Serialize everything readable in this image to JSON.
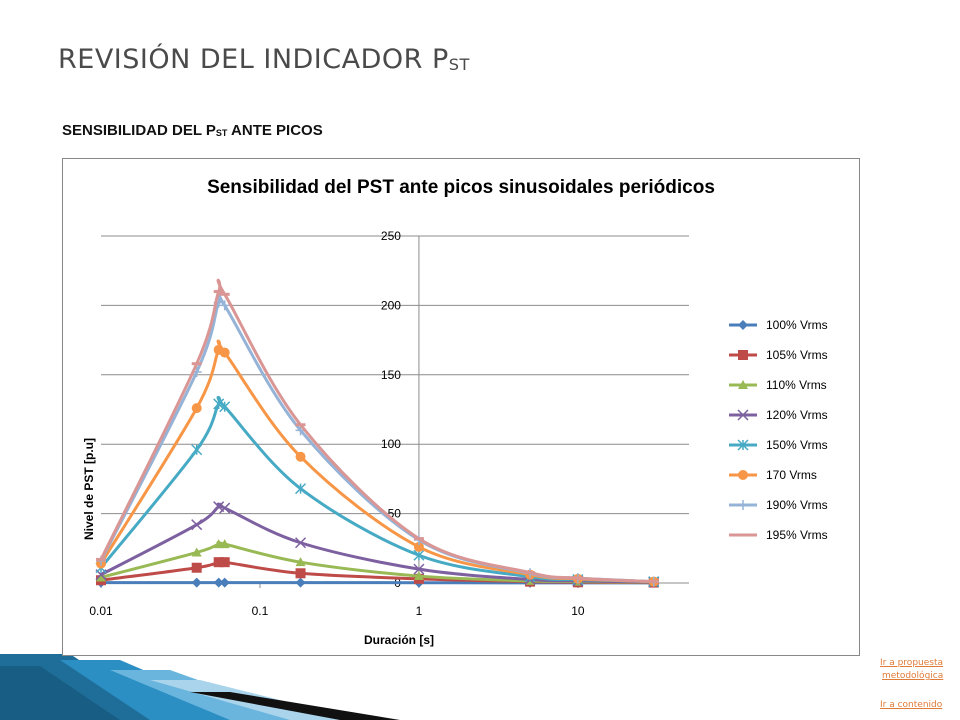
{
  "slide": {
    "title_main": "REVISIÓN DEL INDICADOR P",
    "title_sub": "ST",
    "section_main": "SENSIBILIDAD  DEL P",
    "section_sub": "ST",
    "section_rest": " ANTE PICOS"
  },
  "links": {
    "propuesta_line1": "Ir a propuesta",
    "propuesta_line2": "metodológica",
    "contenido": "Ir a contenido"
  },
  "colors": {
    "accent_stripe": "#2c8fc4",
    "link": "#e07b39"
  },
  "chart_data": {
    "type": "line",
    "title": "Sensibilidad del PST ante picos sinusoidales periódicos",
    "xlabel": "Duración  [s]",
    "ylabel": "Nivel de PST [p.u]",
    "x_scale": "log",
    "xlim": [
      0.01,
      50
    ],
    "ylim": [
      0,
      250
    ],
    "x_ticks": [
      0.01,
      0.1,
      1,
      10
    ],
    "x_tick_labels": [
      "0.01",
      "0.1",
      "1",
      "10"
    ],
    "y_ticks": [
      0,
      50,
      100,
      150,
      200,
      250
    ],
    "y_tick_labels": [
      "0",
      "50",
      "100",
      "150",
      "200",
      "250"
    ],
    "grid": "horizontal",
    "legend_position": "right",
    "x": [
      0.01,
      0.04,
      0.055,
      0.06,
      0.18,
      1,
      5,
      10,
      30
    ],
    "series": [
      {
        "name": "100% Vrms",
        "color": "#4a7ebb",
        "marker": "diamond",
        "values": [
          0.3,
          0.3,
          0.3,
          0.3,
          0.3,
          0.2,
          0.1,
          0.1,
          0.1
        ]
      },
      {
        "name": "105% Vrms",
        "color": "#be4b48",
        "marker": "square",
        "values": [
          2,
          11,
          15,
          15,
          7,
          3,
          1,
          0.5,
          0.3
        ]
      },
      {
        "name": "110% Vrms",
        "color": "#98b954",
        "marker": "triangle",
        "values": [
          4,
          22,
          28,
          28,
          15,
          5,
          1.5,
          1,
          0.5
        ]
      },
      {
        "name": "120% Vrms",
        "color": "#7d60a0",
        "marker": "x",
        "values": [
          6,
          42,
          55,
          54,
          29,
          10,
          2.5,
          1.5,
          0.7
        ]
      },
      {
        "name": "150% Vrms",
        "color": "#46aac4",
        "marker": "asterisk",
        "values": [
          11,
          96,
          129,
          127,
          68,
          20,
          4.5,
          2.5,
          1
        ]
      },
      {
        "name": "170 Vrms",
        "color": "#f79646",
        "marker": "circle",
        "values": [
          14,
          126,
          168,
          166,
          91,
          26,
          6,
          3,
          1
        ]
      },
      {
        "name": "190% Vrms",
        "color": "#95b3d7",
        "marker": "plus",
        "values": [
          16,
          152,
          202,
          200,
          110,
          31,
          7,
          3.5,
          1
        ]
      },
      {
        "name": "195% Vrms",
        "color": "#d99694",
        "marker": "dash",
        "values": [
          17,
          158,
          210,
          208,
          114,
          32,
          7.5,
          3.5,
          1
        ]
      }
    ]
  }
}
